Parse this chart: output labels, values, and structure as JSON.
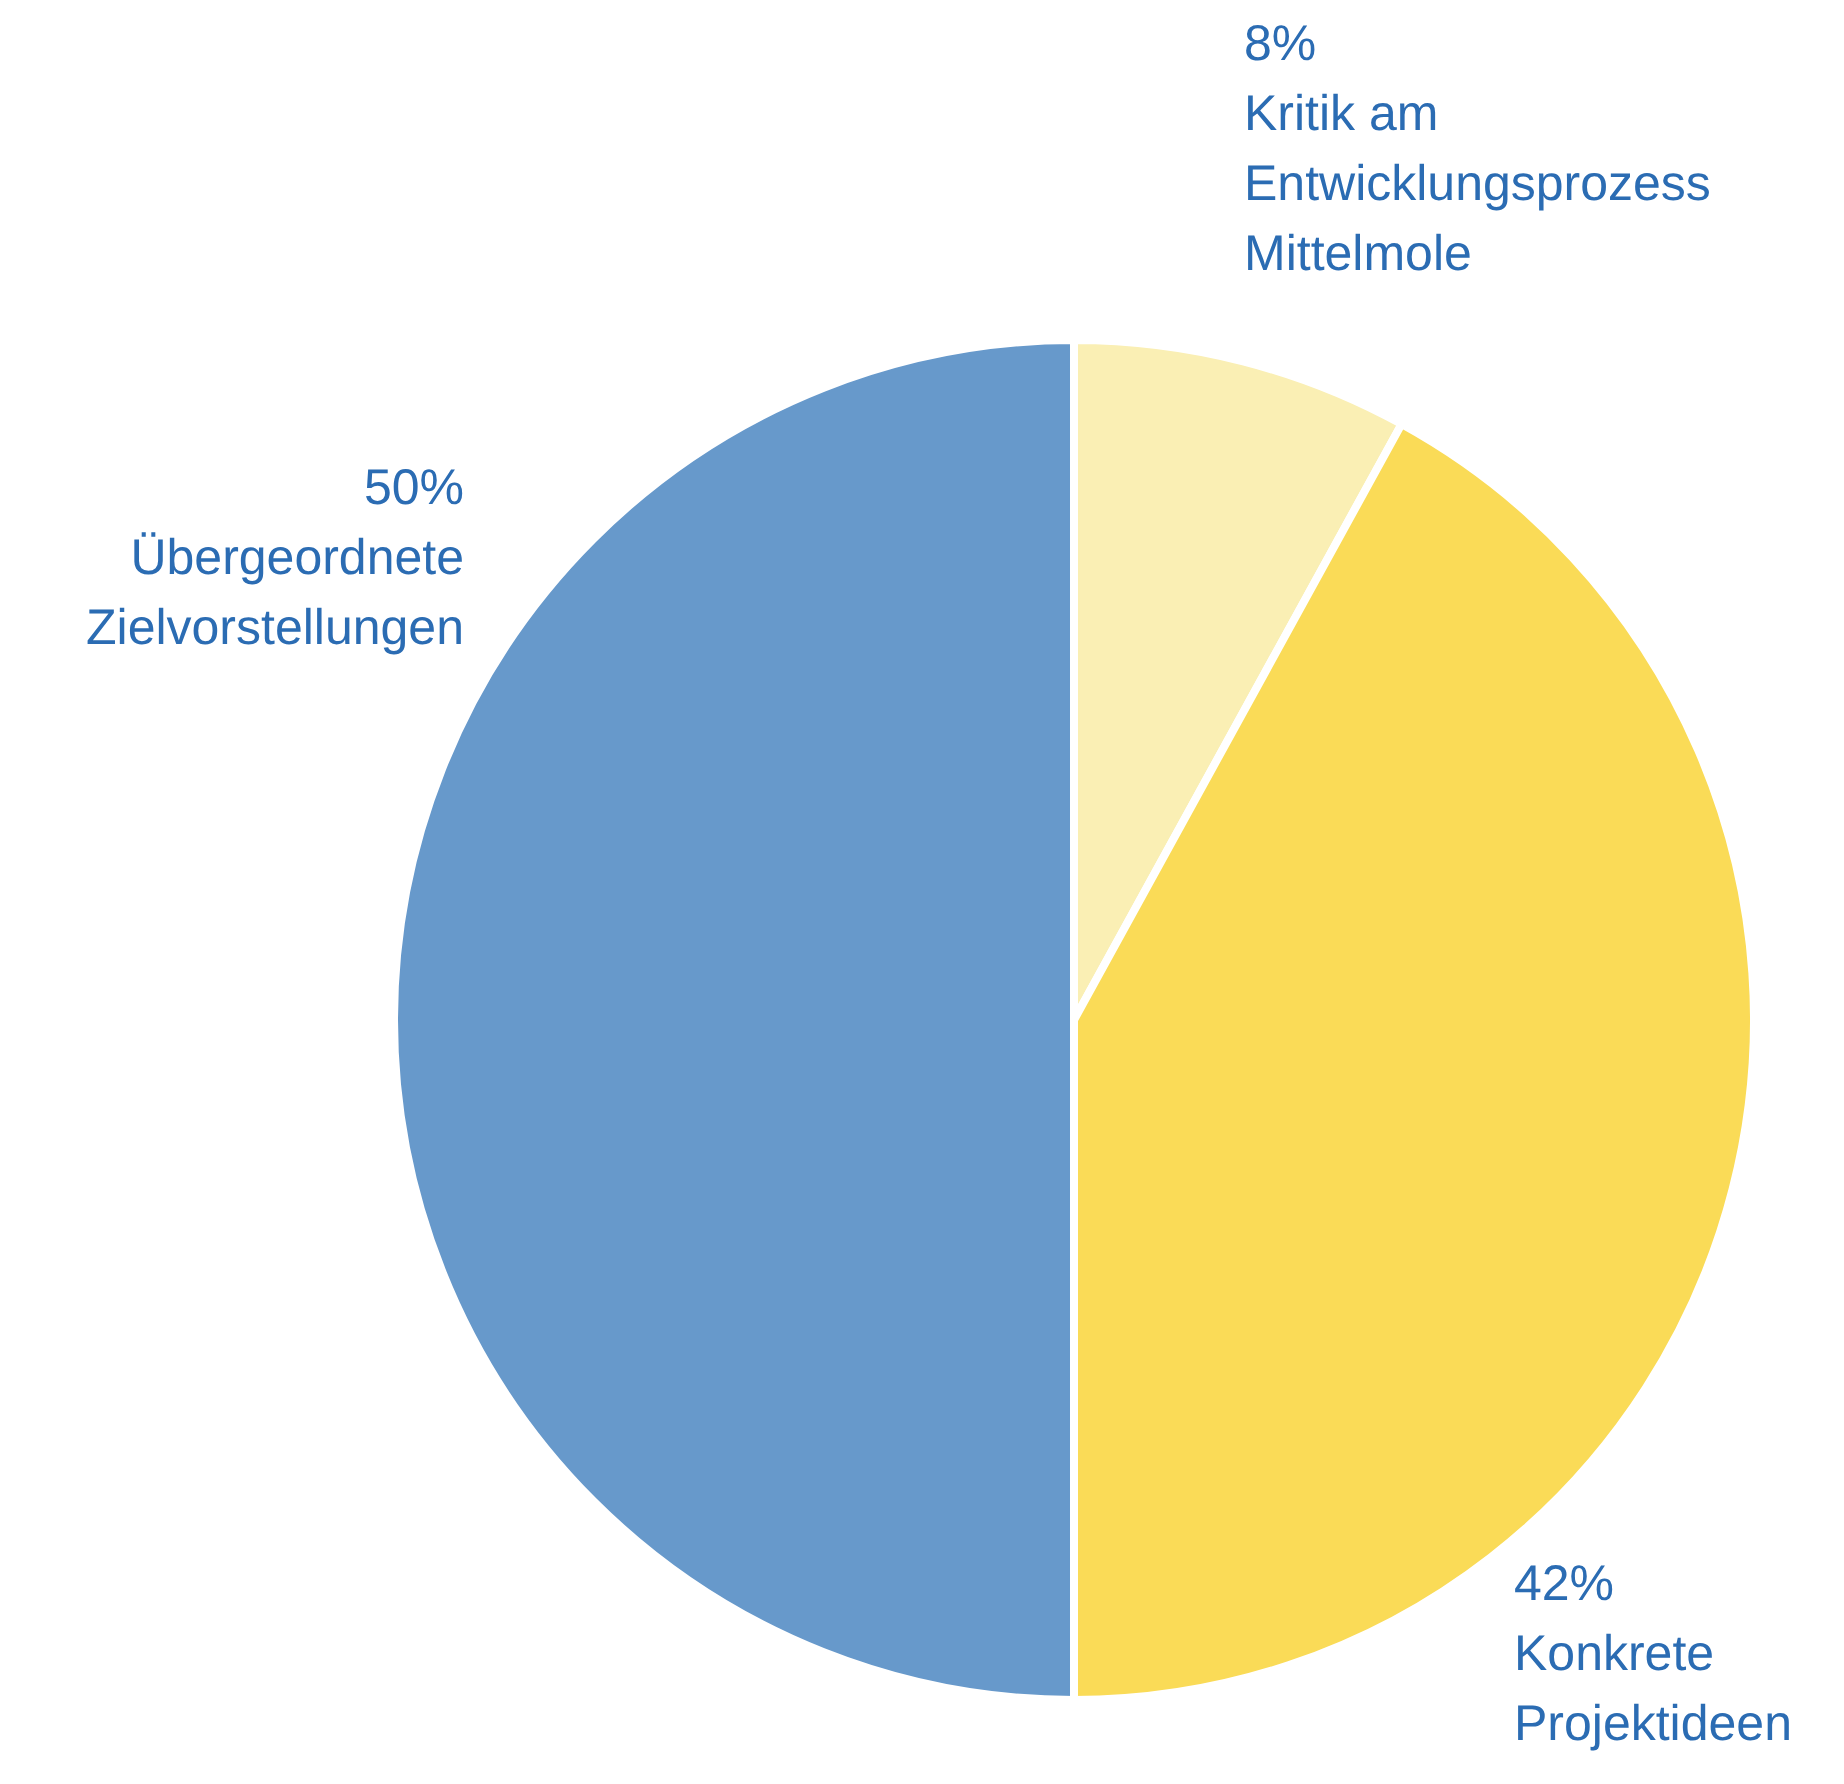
{
  "chart_data": {
    "type": "pie",
    "categories": [
      "Kritik am Entwicklungsprozess Mittelmole",
      "Konkrete Projektideen",
      "Übergeordnete Zielvorstellungen"
    ],
    "values": [
      8,
      42,
      50
    ],
    "colors": [
      "#faefb4",
      "#fadb57",
      "#6799cb"
    ],
    "value_labels": [
      "8%",
      "42%",
      "50%"
    ]
  }
}
